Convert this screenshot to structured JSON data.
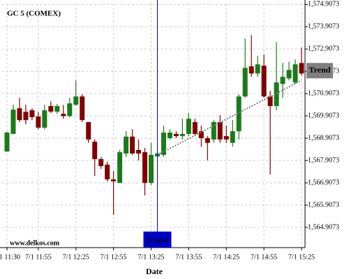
{
  "chart_data": {
    "type": "candlestick",
    "title": "GC 5 (COMEX)",
    "x_label": "Date",
    "watermark": "www.delkos.com",
    "categories": [
      "7/1 11:30",
      null,
      null,
      null,
      null,
      "7/1 11:55",
      null,
      null,
      null,
      null,
      null,
      "7/1 12:25",
      null,
      null,
      null,
      null,
      null,
      "7/1 12:55",
      null,
      null,
      null,
      null,
      null,
      "7/1 13:25",
      null,
      null,
      null,
      null,
      null,
      "7/1 13:55",
      null,
      null,
      null,
      null,
      null,
      "7/1 14:25",
      null,
      null,
      null,
      null,
      null,
      "7/1 14:55",
      null,
      null,
      null,
      null,
      null,
      "7/1 15:25"
    ],
    "open": [
      1568.31,
      1569.1,
      1570.25,
      1570.09,
      1570.16,
      1569.88,
      1569.38,
      1570.35,
      1570.1,
      1570.0,
      1569.9,
      1570.41,
      1570.78,
      1569.63,
      1568.75,
      1567.97,
      1567.72,
      1567.06,
      1566.9,
      1568.22,
      1568.98,
      1568.38,
      1568.28,
      1566.9,
      1568.09,
      1568.16,
      1568.91,
      1569.1,
      1569.0,
      1569.1,
      1569.63,
      1569.22,
      1568.91,
      1568.85,
      1569.63,
      1569.0,
      1568.7,
      1569.22,
      1570.78,
      1572.13,
      1571.81,
      1572.16,
      1570.78,
      1570.35,
      1571.34,
      1571.59,
      1571.41,
      1572.28
    ],
    "high": [
      1569.2,
      1570.41,
      1570.72,
      1570.41,
      1570.25,
      1570.09,
      1570.41,
      1570.56,
      1570.45,
      1570.4,
      1570.72,
      1571.5,
      1570.88,
      1569.63,
      1568.85,
      1568.06,
      1567.85,
      1567.44,
      1568.38,
      1569.22,
      1569.31,
      1568.85,
      1568.47,
      1568.7,
      1568.28,
      1569.47,
      1569.31,
      1569.22,
      1569.78,
      1570.03,
      1569.78,
      1569.47,
      1569.0,
      1569.72,
      1569.94,
      1569.47,
      1569.72,
      1570.88,
      1573.38,
      1573.53,
      1572.6,
      1572.66,
      1571.03,
      1573.22,
      1572.28,
      1572.34,
      1572.44,
      1572.97
    ],
    "low": [
      1568.3,
      1569.1,
      1569.63,
      1569.53,
      1569.72,
      1569.31,
      1569.31,
      1570.03,
      1570.0,
      1569.78,
      1569.85,
      1570.35,
      1569.63,
      1568.7,
      1567.22,
      1567.53,
      1566.97,
      1565.47,
      1566.9,
      1568.06,
      1568.16,
      1567.91,
      1566.34,
      1566.81,
      1568.03,
      1568.06,
      1568.85,
      1568.91,
      1568.85,
      1569.0,
      1569.0,
      1568.53,
      1567.91,
      1568.7,
      1568.7,
      1568.7,
      1568.53,
      1568.85,
      1570.72,
      1571.66,
      1571.66,
      1570.72,
      1567.28,
      1570.16,
      1570.72,
      1571.5,
      1571.34,
      1571.72
    ],
    "close": [
      1569.16,
      1570.19,
      1569.72,
      1569.72,
      1569.85,
      1569.38,
      1570.16,
      1570.1,
      1570.35,
      1569.9,
      1570.47,
      1570.78,
      1569.72,
      1568.85,
      1567.97,
      1567.66,
      1567.06,
      1566.97,
      1568.28,
      1568.98,
      1568.22,
      1568.22,
      1566.9,
      1568.16,
      1568.22,
      1569.16,
      1569.16,
      1569.0,
      1569.1,
      1569.78,
      1569.1,
      1568.91,
      1568.7,
      1569.63,
      1568.85,
      1568.85,
      1569.22,
      1570.78,
      1572.06,
      1571.81,
      1572.22,
      1570.78,
      1570.35,
      1571.41,
      1571.66,
      1571.97,
      1572.22,
      1571.81
    ],
    "up_color": "#1a7a1a",
    "down_color": "#800000",
    "ylim": [
      1564.0,
      1574.95
    ],
    "yticks": [
      {
        "value": 1564.9073,
        "label": "1,564.9073"
      },
      {
        "value": 1565.9073,
        "label": "1,565.9073"
      },
      {
        "value": 1566.9073,
        "label": "1,566.9073"
      },
      {
        "value": 1567.9073,
        "label": "1,567.9073"
      },
      {
        "value": 1568.9073,
        "label": "1,568.9073"
      },
      {
        "value": 1569.9073,
        "label": "1,569.9073"
      },
      {
        "value": 1570.9073,
        "label": "1,570.9073"
      },
      {
        "value": 1571.9073,
        "label": "1,571.9073"
      },
      {
        "value": 1572.9073,
        "label": "1,572.9073"
      },
      {
        "value": 1573.9073,
        "label": "1,573.9073"
      },
      {
        "value": 1574.9073,
        "label": "1,574.9073"
      }
    ],
    "grid": true,
    "event": {
      "label": "Event",
      "index": 24,
      "color": "#0000cc"
    },
    "trend": {
      "label": "Trend",
      "start": [
        24,
        1568.16
      ],
      "end": [
        47,
        1571.5
      ],
      "color": "#808080"
    }
  }
}
